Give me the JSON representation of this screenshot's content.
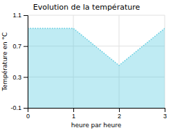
{
  "chart_data": {
    "type": "area",
    "title": "Evolution de la température",
    "xlabel": "heure par heure",
    "ylabel": "Température en °C",
    "x": [
      0,
      1,
      2,
      3
    ],
    "values": [
      0.93,
      0.93,
      0.45,
      0.93
    ],
    "xlim": [
      0,
      3
    ],
    "ylim": [
      -0.1,
      1.1
    ],
    "xticks": [
      0,
      1,
      2,
      3
    ],
    "yticks": [
      -0.1,
      0.3,
      0.7,
      1.1
    ],
    "color": "#60cce0",
    "line_style": "dotted",
    "grid": true
  }
}
